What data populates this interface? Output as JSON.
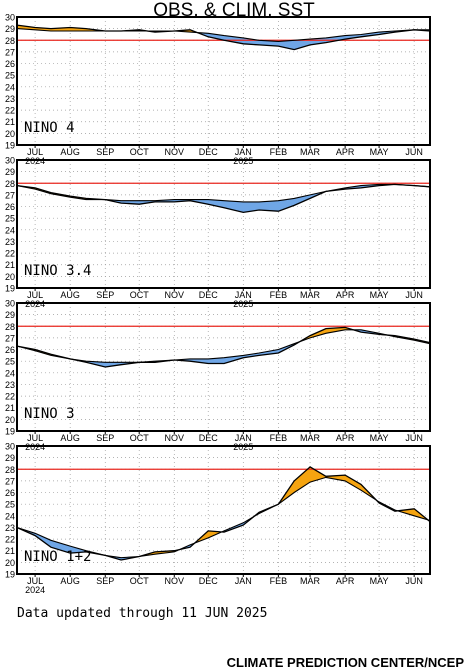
{
  "header": {
    "title": "OBS. & CLIM. SST"
  },
  "footer": {
    "updated": "Data updated through 11 JUN 2025",
    "credit": "CLIMATE PREDICTION CENTER/NCEP"
  },
  "colors": {
    "warm": "#f5a410",
    "cool": "#6fa6e6",
    "climatology_line": "#e8261e",
    "observed_line": "#000000",
    "grid": "#9a9a9a"
  },
  "chart_data": [
    {
      "type": "area",
      "label": "NINO 4",
      "ylim": [
        19,
        30
      ],
      "yticks": [
        19,
        20,
        21,
        22,
        23,
        24,
        25,
        26,
        27,
        28,
        29,
        30
      ],
      "xlim": [
        "2024-06-15",
        "2025-06-15"
      ],
      "month_ticks": [
        "JUL",
        "AUG",
        "SEP",
        "OCT",
        "NOV",
        "DEC",
        "JAN",
        "FEB",
        "MAR",
        "APR",
        "MAY",
        "JUN"
      ],
      "year_labels": [
        {
          "month": "JUL",
          "year": "2024"
        },
        {
          "month": "JAN",
          "year": "2025"
        }
      ],
      "reference_line": 28,
      "series": [
        {
          "x": [
            "2024-06-15",
            "2024-07-01",
            "2024-07-15",
            "2024-08-01",
            "2024-08-15",
            "2024-09-01",
            "2024-09-15",
            "2024-10-01",
            "2024-10-15",
            "2024-11-01",
            "2024-11-15",
            "2024-12-01",
            "2024-12-15",
            "2025-01-01",
            "2025-01-15",
            "2025-02-01",
            "2025-02-15",
            "2025-03-01",
            "2025-03-15",
            "2025-04-01",
            "2025-04-15",
            "2025-05-01",
            "2025-05-15",
            "2025-06-01",
            "2025-06-15"
          ],
          "obs": [
            29.3,
            29.1,
            29.0,
            29.1,
            29.0,
            28.8,
            28.8,
            28.9,
            28.7,
            28.8,
            28.9,
            28.3,
            28.0,
            27.7,
            27.6,
            27.5,
            27.2,
            27.6,
            27.8,
            28.1,
            28.3,
            28.5,
            28.7,
            28.9,
            28.8
          ],
          "clim": [
            29.0,
            28.9,
            28.8,
            28.8,
            28.8,
            28.8,
            28.8,
            28.8,
            28.8,
            28.8,
            28.7,
            28.6,
            28.4,
            28.2,
            28.0,
            27.9,
            28.0,
            28.1,
            28.2,
            28.4,
            28.5,
            28.7,
            28.8,
            28.9,
            28.9
          ]
        }
      ]
    },
    {
      "type": "area",
      "label": "NINO 3.4",
      "ylim": [
        19,
        30
      ],
      "yticks": [
        19,
        20,
        21,
        22,
        23,
        24,
        25,
        26,
        27,
        28,
        29,
        30
      ],
      "xlim": [
        "2024-06-15",
        "2025-06-15"
      ],
      "month_ticks": [
        "JUL",
        "AUG",
        "SEP",
        "OCT",
        "NOV",
        "DEC",
        "JAN",
        "FEB",
        "MAR",
        "APR",
        "MAY",
        "JUN"
      ],
      "year_labels": [
        {
          "month": "JUL",
          "year": "2024"
        },
        {
          "month": "JAN",
          "year": "2025"
        }
      ],
      "reference_line": 28,
      "series": [
        {
          "x": [
            "2024-06-15",
            "2024-07-01",
            "2024-07-15",
            "2024-08-01",
            "2024-08-15",
            "2024-09-01",
            "2024-09-15",
            "2024-10-01",
            "2024-10-15",
            "2024-11-01",
            "2024-11-15",
            "2024-12-01",
            "2024-12-15",
            "2025-01-01",
            "2025-01-15",
            "2025-02-01",
            "2025-02-15",
            "2025-03-01",
            "2025-03-15",
            "2025-04-01",
            "2025-04-15",
            "2025-05-01",
            "2025-05-15",
            "2025-06-01",
            "2025-06-15"
          ],
          "obs": [
            27.8,
            27.6,
            27.2,
            26.9,
            26.7,
            26.6,
            26.3,
            26.2,
            26.4,
            26.4,
            26.5,
            26.2,
            25.9,
            25.5,
            25.7,
            25.6,
            26.1,
            26.7,
            27.3,
            27.5,
            27.6,
            27.8,
            27.9,
            27.8,
            27.7
          ],
          "clim": [
            27.8,
            27.5,
            27.1,
            26.8,
            26.6,
            26.6,
            26.5,
            26.5,
            26.5,
            26.6,
            26.6,
            26.6,
            26.5,
            26.4,
            26.4,
            26.5,
            26.7,
            27.0,
            27.3,
            27.6,
            27.8,
            27.9,
            27.9,
            27.8,
            27.7
          ]
        }
      ]
    },
    {
      "type": "area",
      "label": "NINO 3",
      "ylim": [
        19,
        30
      ],
      "yticks": [
        19,
        20,
        21,
        22,
        23,
        24,
        25,
        26,
        27,
        28,
        29,
        30
      ],
      "xlim": [
        "2024-06-15",
        "2025-06-15"
      ],
      "month_ticks": [
        "JUL",
        "AUG",
        "SEP",
        "OCT",
        "NOV",
        "DEC",
        "JAN",
        "FEB",
        "MAR",
        "APR",
        "MAY",
        "JUN"
      ],
      "year_labels": [
        {
          "month": "JUL",
          "year": "2024"
        },
        {
          "month": "JAN",
          "year": "2025"
        }
      ],
      "reference_line": 28,
      "series": [
        {
          "x": [
            "2024-06-15",
            "2024-07-01",
            "2024-07-15",
            "2024-08-01",
            "2024-08-15",
            "2024-09-01",
            "2024-09-15",
            "2024-10-01",
            "2024-10-15",
            "2024-11-01",
            "2024-11-15",
            "2024-12-01",
            "2024-12-15",
            "2025-01-01",
            "2025-01-15",
            "2025-02-01",
            "2025-02-15",
            "2025-03-01",
            "2025-03-15",
            "2025-04-01",
            "2025-04-15",
            "2025-05-01",
            "2025-05-15",
            "2025-06-01",
            "2025-06-15"
          ],
          "obs": [
            26.3,
            26.0,
            25.6,
            25.2,
            24.9,
            24.5,
            24.7,
            24.9,
            24.9,
            25.1,
            25.0,
            24.8,
            24.8,
            25.3,
            25.5,
            25.7,
            26.4,
            27.2,
            27.8,
            27.9,
            27.5,
            27.3,
            27.2,
            26.9,
            26.6
          ],
          "clim": [
            26.3,
            25.9,
            25.5,
            25.2,
            25.0,
            24.9,
            24.9,
            24.9,
            25.0,
            25.1,
            25.2,
            25.2,
            25.3,
            25.5,
            25.7,
            26.0,
            26.5,
            27.0,
            27.4,
            27.7,
            27.7,
            27.4,
            27.1,
            26.8,
            26.5
          ]
        }
      ]
    },
    {
      "type": "area",
      "label": "NINO 1+2",
      "ylim": [
        19,
        30
      ],
      "yticks": [
        19,
        20,
        21,
        22,
        23,
        24,
        25,
        26,
        27,
        28,
        29,
        30
      ],
      "xlim": [
        "2024-06-15",
        "2025-06-15"
      ],
      "month_ticks": [
        "JUL",
        "AUG",
        "SEP",
        "OCT",
        "NOV",
        "DEC",
        "JAN",
        "FEB",
        "MAR",
        "APR",
        "MAY",
        "JUN"
      ],
      "year_labels": [
        {
          "month": "JUL",
          "year": "2024"
        }
      ],
      "reference_line": 28,
      "series": [
        {
          "x": [
            "2024-06-15",
            "2024-07-01",
            "2024-07-15",
            "2024-08-01",
            "2024-08-15",
            "2024-09-01",
            "2024-09-15",
            "2024-10-01",
            "2024-10-15",
            "2024-11-01",
            "2024-11-15",
            "2024-12-01",
            "2024-12-15",
            "2025-01-01",
            "2025-01-15",
            "2025-02-01",
            "2025-02-15",
            "2025-03-01",
            "2025-03-15",
            "2025-04-01",
            "2025-04-15",
            "2025-05-01",
            "2025-05-15",
            "2025-06-01",
            "2025-06-15"
          ],
          "obs": [
            23.0,
            22.3,
            21.3,
            20.8,
            20.9,
            20.6,
            20.2,
            20.5,
            20.9,
            21.0,
            21.3,
            22.7,
            22.6,
            23.2,
            24.3,
            25.0,
            27.0,
            28.2,
            27.4,
            27.5,
            26.7,
            25.1,
            24.4,
            24.6,
            23.5
          ],
          "clim": [
            23.0,
            22.5,
            21.9,
            21.4,
            21.0,
            20.6,
            20.4,
            20.5,
            20.7,
            20.9,
            21.5,
            22.1,
            22.7,
            23.4,
            24.2,
            25.0,
            26.0,
            26.9,
            27.3,
            27.0,
            26.2,
            25.2,
            24.5,
            24.0,
            23.6
          ]
        }
      ]
    }
  ]
}
